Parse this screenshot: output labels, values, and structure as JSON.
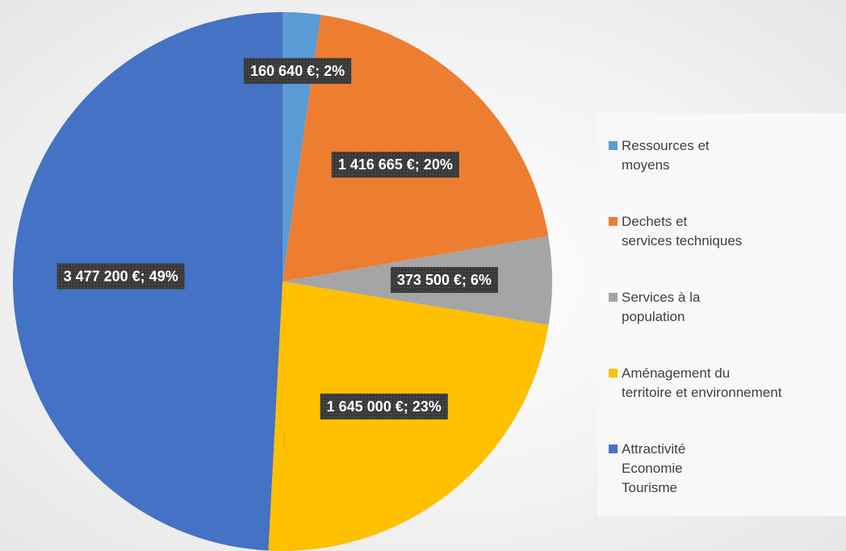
{
  "chart_data": {
    "type": "pie",
    "categories": [
      "Ressources et\nmoyens",
      "Dechets et\nservices techniques",
      "Services à la\npopulation",
      "Aménagement du\nterritoire et environnement",
      "Attractivité\nEconomie\nTourisme"
    ],
    "values": [
      160640,
      1416665,
      373500,
      1645000,
      3477200
    ],
    "value_labels": [
      "160 640 €; 2%",
      "1 416 665 €; 20%",
      "373 500 €; 6%",
      "1 645 000 €; 23%",
      "3 477 200 €; 49%"
    ],
    "colors": [
      "#5b9bd5",
      "#ed7d31",
      "#a5a5a5",
      "#ffc000",
      "#4472c4"
    ],
    "legend": "right"
  }
}
